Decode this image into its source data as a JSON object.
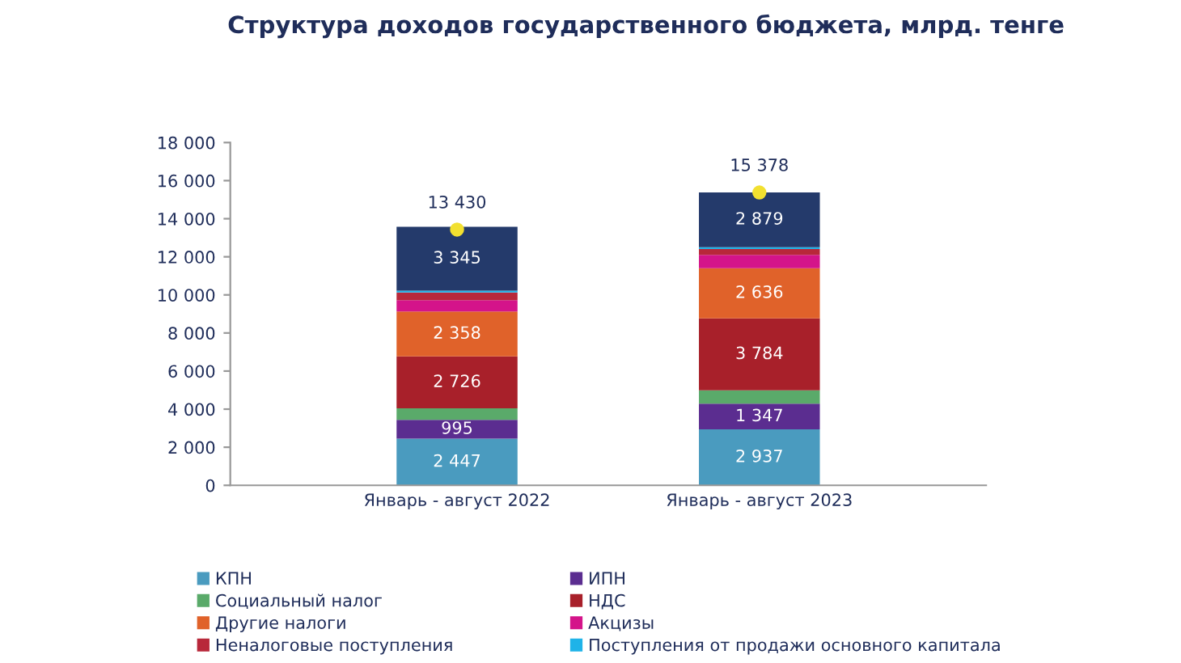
{
  "chart_data": {
    "type": "bar",
    "stacked": true,
    "title": "Структура доходов государственного бюджета, млрд. тенге",
    "categories": [
      "Январь - август 2022",
      "Январь - август 2023"
    ],
    "series": [
      {
        "name": "КПН",
        "color": "#4a9bbf",
        "values": [
          2447,
          2937
        ],
        "value_labels": [
          "2 447",
          "2 937"
        ]
      },
      {
        "name": "ИПН",
        "color": "#5b2d90",
        "values": [
          995,
          1347
        ],
        "value_labels": [
          "995",
          "1 347"
        ]
      },
      {
        "name": "Социальный налог",
        "color": "#5aaa6a",
        "values": [
          600,
          700
        ]
      },
      {
        "name": "НДС",
        "color": "#a8202a",
        "values": [
          2726,
          3784
        ],
        "value_labels": [
          "2 726",
          "3 784"
        ]
      },
      {
        "name": "Другие налоги",
        "color": "#e0622a",
        "values": [
          2358,
          2636
        ],
        "value_labels": [
          "2 358",
          "2 636"
        ]
      },
      {
        "name": "Акцизы",
        "color": "#d4148a",
        "values": [
          600,
          700
        ]
      },
      {
        "name": "Неналоговые поступления",
        "color": "#b8283a",
        "values": [
          400,
          300
        ]
      },
      {
        "name": "Поступления от продажи основного капитала",
        "color": "#1fb3e8",
        "values": [
          100,
          100
        ]
      },
      {
        "color": "#243a6b",
        "values": [
          3345,
          2879
        ],
        "value_labels": [
          "3 345",
          "2 879"
        ]
      },
      {
        "type": "scatter",
        "color": "#f2e030",
        "values": [
          13430,
          15378
        ],
        "value_labels": [
          "13 430",
          "15 378"
        ]
      }
    ],
    "ylim": [
      0,
      18000
    ],
    "yticks": [
      0,
      {
        "value": 2000,
        "label": "2 000"
      },
      {
        "value": 4000,
        "label": "4 000"
      },
      {
        "value": 6000,
        "label": "6 000"
      },
      {
        "value": 8000,
        "label": "8 000"
      },
      {
        "value": 10000,
        "label": "10 000"
      },
      {
        "value": 12000,
        "label": "12 000"
      },
      {
        "value": 14000,
        "label": "14 000"
      },
      {
        "value": 16000,
        "label": "16 000"
      },
      {
        "value": 18000,
        "label": "18 000"
      }
    ],
    "legend": "bottom",
    "marker": "circle"
  }
}
